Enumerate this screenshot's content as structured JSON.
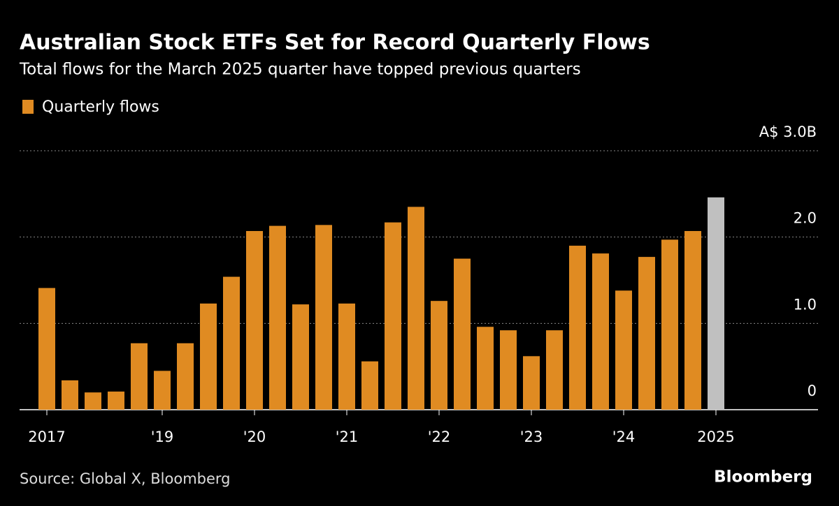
{
  "chart_data": {
    "type": "bar",
    "title": "Australian Stock ETFs Set for Record Quarterly Flows",
    "subtitle": "Total flows for the March 2025 quarter have topped previous quarters",
    "source": "Source: Global X, Bloomberg",
    "brand": "Bloomberg",
    "legend": "top-left",
    "grid": true,
    "categories": [
      "2017",
      null,
      null,
      null,
      null,
      "'19",
      null,
      null,
      null,
      "'20",
      null,
      null,
      null,
      "'21",
      null,
      null,
      null,
      "'22",
      null,
      null,
      null,
      "'23",
      null,
      null,
      null,
      "'24",
      null,
      null,
      null,
      "2025"
    ],
    "series": [
      {
        "name": "Quarterly flows",
        "color": "#e08b22",
        "values": [
          1.41,
          0.34,
          0.2,
          0.21,
          0.77,
          0.45,
          0.77,
          1.23,
          1.54,
          2.07,
          2.13,
          1.22,
          2.14,
          1.23,
          0.56,
          2.17,
          2.35,
          1.26,
          1.75,
          0.96,
          0.92,
          0.62,
          0.92,
          1.9,
          1.81,
          1.38,
          1.77,
          1.97,
          2.07,
          2.46
        ],
        "colors": [
          "#e08b22",
          "#e08b22",
          "#e08b22",
          "#e08b22",
          "#e08b22",
          "#e08b22",
          "#e08b22",
          "#e08b22",
          "#e08b22",
          "#e08b22",
          "#e08b22",
          "#e08b22",
          "#e08b22",
          "#e08b22",
          "#e08b22",
          "#e08b22",
          "#e08b22",
          "#e08b22",
          "#e08b22",
          "#e08b22",
          "#e08b22",
          "#e08b22",
          "#e08b22",
          "#e08b22",
          "#e08b22",
          "#e08b22",
          "#e08b22",
          "#e08b22",
          "#e08b22",
          "#c0c0c0"
        ]
      }
    ],
    "ylim": [
      0,
      3
    ],
    "yticks": [
      0,
      {
        "value": 1,
        "label": "1.0"
      },
      {
        "value": 2,
        "label": "2.0"
      },
      {
        "value": 3,
        "label": "A$ 3.0B"
      }
    ]
  }
}
